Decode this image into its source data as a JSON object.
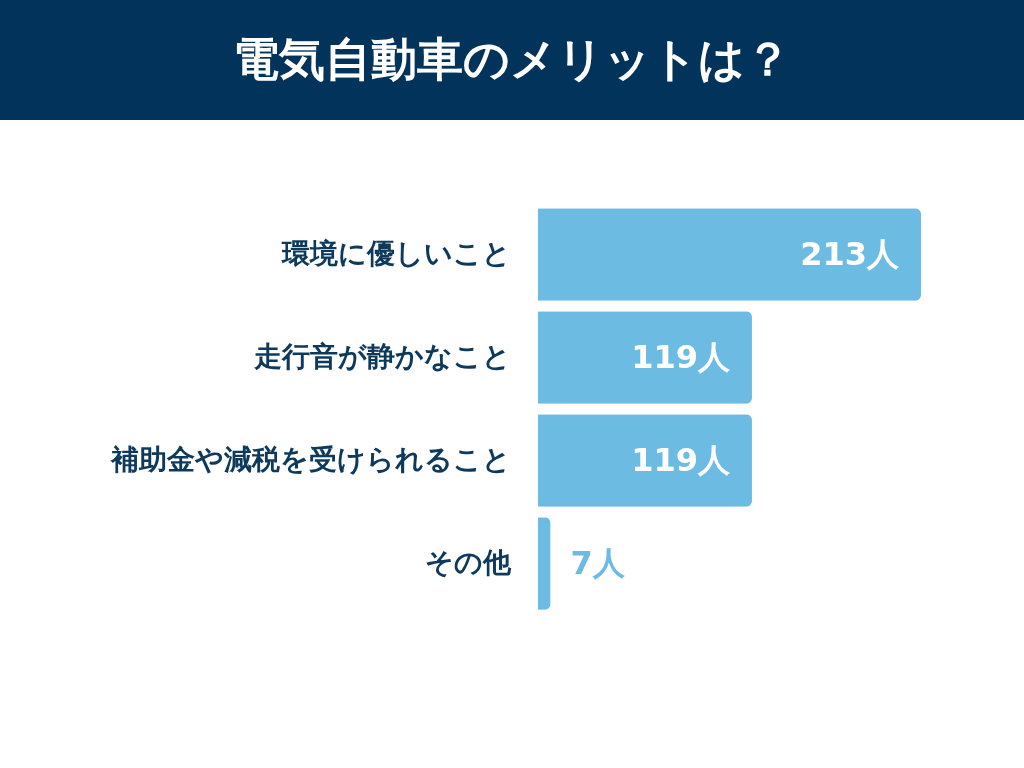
{
  "chart_data": {
    "type": "bar",
    "orientation": "horizontal",
    "title": "電気自動車のメリットは？",
    "categories": [
      "環境に優しいこと",
      "走行音が静かなこと",
      "補助金や減税を受けられること",
      "その他"
    ],
    "values": [
      213,
      119,
      119,
      7
    ],
    "value_labels": [
      "213人",
      "119人",
      "119人",
      "7人"
    ],
    "color": "#6cbbe3"
  }
}
